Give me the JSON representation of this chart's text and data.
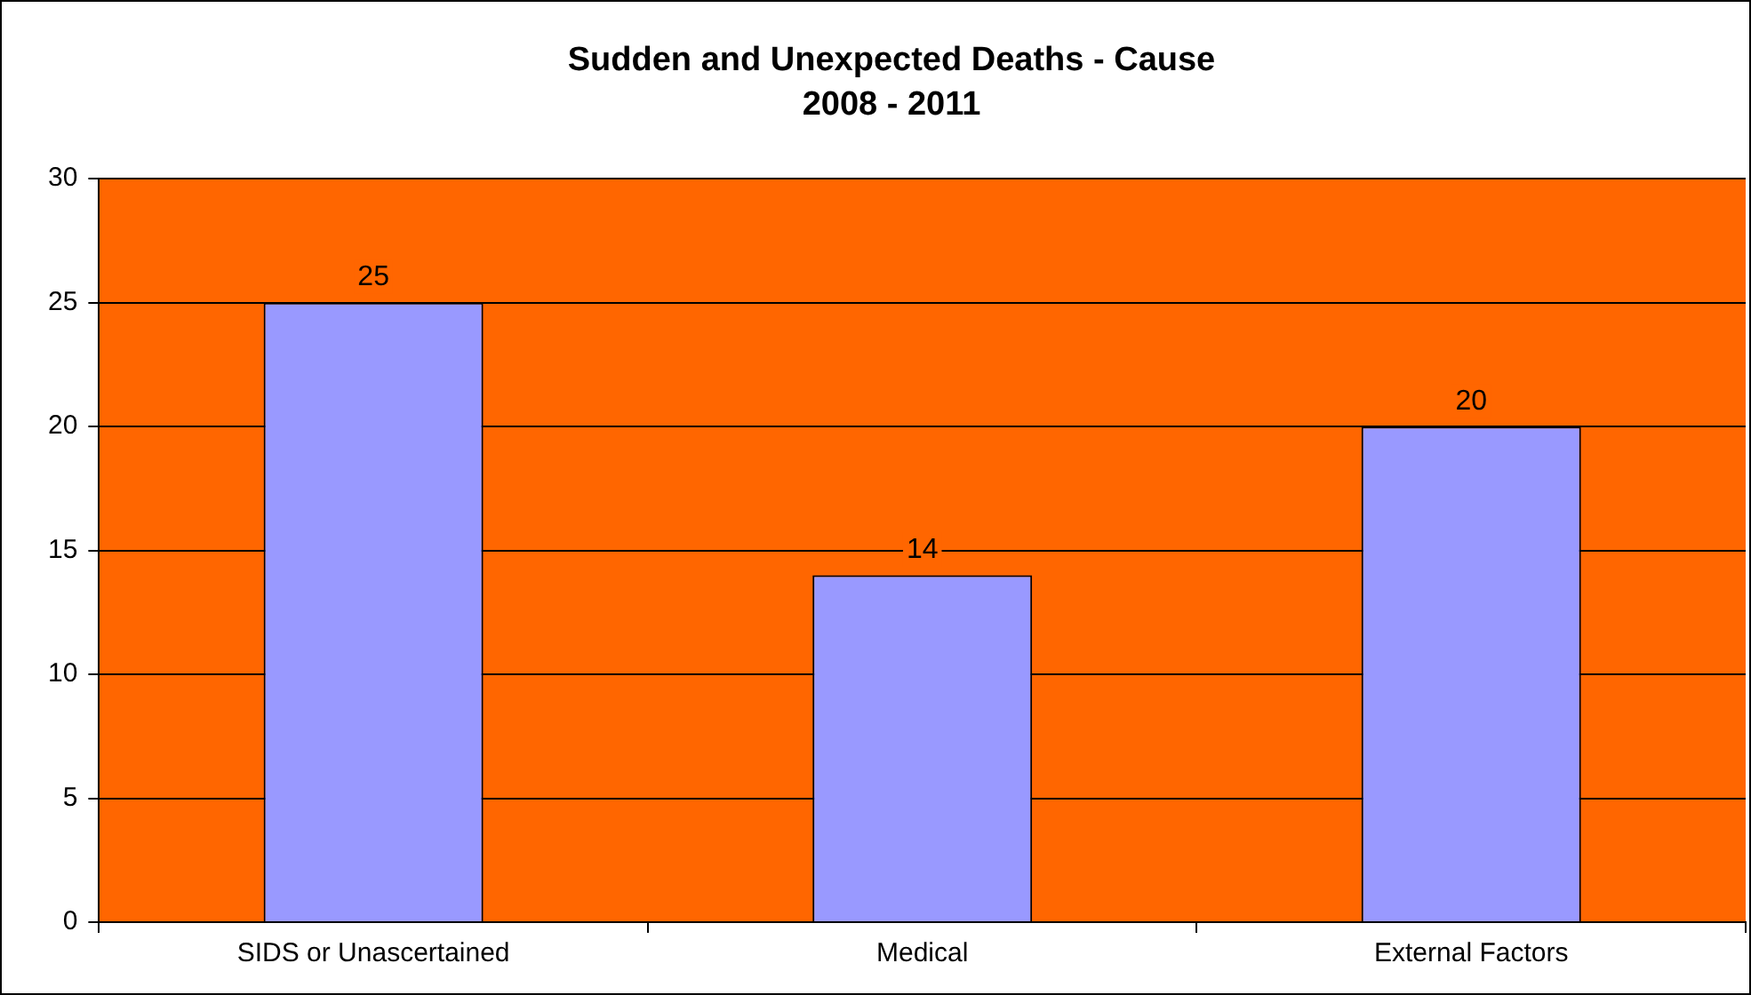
{
  "chart_data": {
    "type": "bar",
    "title": "Sudden and Unexpected Deaths - Cause",
    "subtitle": "2008 - 2011",
    "categories": [
      "SIDS or Unascertained",
      "Medical",
      "External Factors"
    ],
    "values": [
      25,
      14,
      20
    ],
    "color": "#9999ff",
    "ylim": [
      0,
      30
    ],
    "yticks": [
      0,
      5,
      10,
      15,
      20,
      25,
      30
    ],
    "grid": "y",
    "data_labels": true
  }
}
